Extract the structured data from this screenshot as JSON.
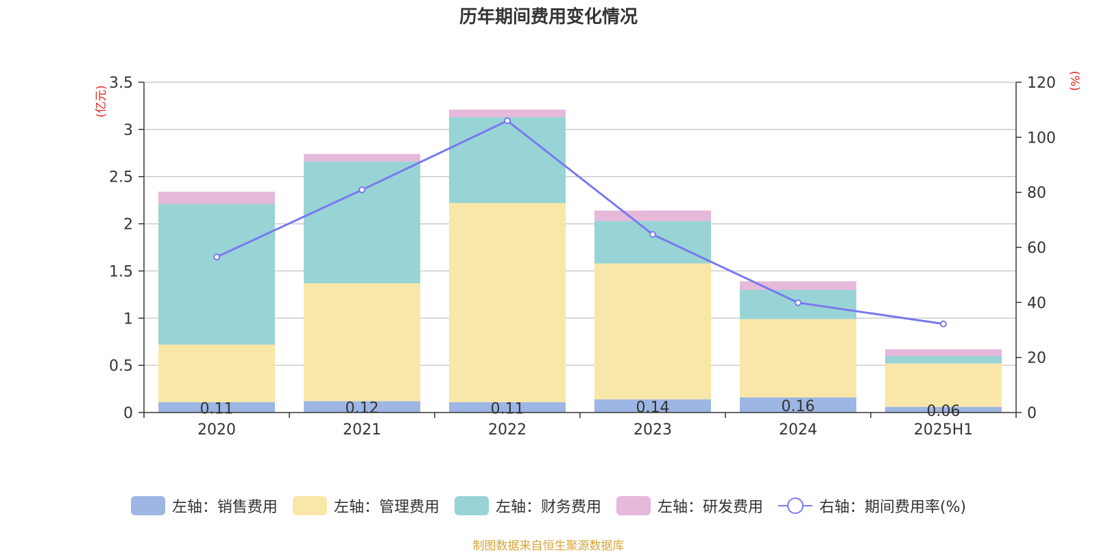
{
  "chart_data": {
    "type": "bar",
    "title": "历年期间费用变化情况",
    "categories": [
      "2020",
      "2021",
      "2022",
      "2023",
      "2024",
      "2025H1"
    ],
    "left_axis": {
      "unit": "(亿元)",
      "ylim": [
        0,
        3.5
      ],
      "ticks": [
        "0",
        "0.5",
        "1",
        "1.5",
        "2",
        "2.5",
        "3",
        "3.5"
      ]
    },
    "right_axis": {
      "unit": "(%)",
      "ylim": [
        0,
        120
      ],
      "ticks": [
        "0",
        "20",
        "40",
        "60",
        "80",
        "100",
        "120"
      ]
    },
    "series": [
      {
        "name": "左轴：销售费用",
        "type": "bar",
        "axis": "left",
        "stacked": true,
        "color": "#9db6e3",
        "values": [
          0.11,
          0.12,
          0.11,
          0.14,
          0.16,
          0.06
        ],
        "labels": [
          "0.11",
          "0.12",
          "0.11",
          "0.14",
          "0.16",
          "0.06"
        ]
      },
      {
        "name": "左轴：管理费用",
        "type": "bar",
        "axis": "left",
        "stacked": true,
        "color": "#f8e7a8",
        "values": [
          0.61,
          1.25,
          2.11,
          1.44,
          0.83,
          0.46
        ]
      },
      {
        "name": "左轴：财务费用",
        "type": "bar",
        "axis": "left",
        "stacked": true,
        "color": "#98d4d5",
        "values": [
          1.49,
          1.29,
          0.91,
          0.45,
          0.31,
          0.08
        ]
      },
      {
        "name": "左轴：研发费用",
        "type": "bar",
        "axis": "left",
        "stacked": true,
        "color": "#e6b8da",
        "values": [
          0.13,
          0.08,
          0.08,
          0.11,
          0.09,
          0.07
        ]
      },
      {
        "name": "右轴：期间费用率(%)",
        "type": "line",
        "axis": "right",
        "color": "#7779f0",
        "values": [
          56.5,
          80.9,
          106.0,
          64.7,
          39.9,
          32.2
        ]
      }
    ],
    "grid": true,
    "legend_position": "bottom"
  },
  "source_note": "制图数据来自恒生聚源数据库"
}
